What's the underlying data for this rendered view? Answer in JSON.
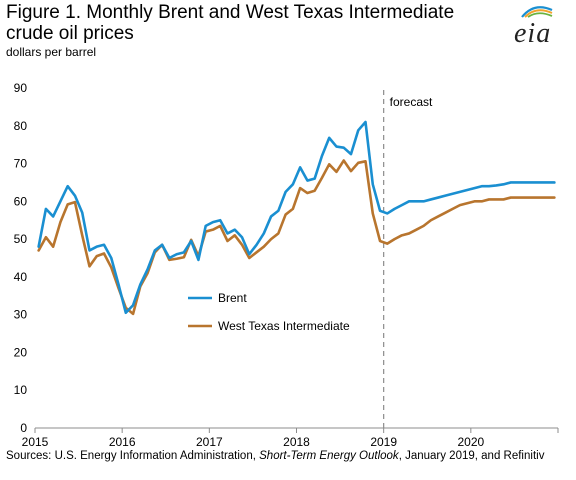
{
  "header": {
    "title": "Figure 1. Monthly Brent and West Texas Intermediate crude oil prices",
    "subtitle": "dollars per barrel",
    "logo_text": "eia"
  },
  "source": {
    "prefix": "Sources: U.S. Energy Information Administration, ",
    "italic": "Short-Term Energy Outlook",
    "suffix": ", January 2019, and Refinitiv"
  },
  "colors": {
    "brent": "#1a8fd1",
    "wti": "#b8752e",
    "forecast_line": "#8c8c8c",
    "axis": "#8c8c8c"
  },
  "chart_data": {
    "type": "line",
    "title": "Figure 1. Monthly Brent and West Texas Intermediate crude oil prices",
    "ylabel": "dollars per barrel",
    "xlabel": "",
    "ylim": [
      0,
      90
    ],
    "yticks": [
      0,
      10,
      20,
      30,
      40,
      50,
      60,
      70,
      80,
      90
    ],
    "xticks": [
      "2015",
      "2016",
      "2017",
      "2018",
      "2019",
      "2020"
    ],
    "x_start": "2015-01",
    "x_end": "2020-12",
    "grid": false,
    "legend": "center-left",
    "annotation": "forecast",
    "forecast_start": "2019-01",
    "series": [
      {
        "name": "Brent",
        "color": "#1a8fd1",
        "values": [
          48,
          58,
          56,
          60,
          64,
          61.5,
          57,
          47,
          48,
          48.5,
          45,
          38,
          30.5,
          32.5,
          38,
          42,
          47,
          48.5,
          45,
          46,
          46.5,
          49.5,
          44.5,
          53.5,
          54.5,
          55,
          51.5,
          52.5,
          50.5,
          46,
          48.5,
          51.5,
          56,
          57.5,
          62.5,
          64.5,
          69,
          65.5,
          66,
          72,
          76.8,
          74.5,
          74.2,
          72.5,
          78.8,
          81,
          64.5,
          57.5,
          56.8,
          58,
          59,
          60,
          60,
          60,
          60.5,
          61,
          61.5,
          62,
          62.5,
          63,
          63.5,
          64,
          64,
          64.2,
          64.5,
          65,
          65,
          65,
          65,
          65,
          65,
          65
        ]
      },
      {
        "name": "West Texas Intermediate",
        "color": "#b8752e",
        "values": [
          47,
          50.5,
          48,
          54.5,
          59.2,
          59.8,
          51,
          42.8,
          45.5,
          46.2,
          42.5,
          37,
          31.8,
          30.2,
          37.5,
          41,
          46.5,
          48.5,
          44.5,
          44.8,
          45.2,
          49.8,
          45.5,
          52,
          52.5,
          53.5,
          49.5,
          51,
          48.5,
          45,
          46.5,
          48,
          50,
          51.5,
          56.5,
          58,
          63.5,
          62.2,
          62.8,
          66.2,
          69.8,
          67.8,
          70.8,
          68,
          70.2,
          70.6,
          56.8,
          49.5,
          48.8,
          50,
          51,
          51.5,
          52.5,
          53.5,
          55,
          56,
          57,
          58,
          59,
          59.5,
          60,
          60,
          60.5,
          60.5,
          60.5,
          61,
          61,
          61,
          61,
          61,
          61,
          61
        ]
      }
    ]
  }
}
